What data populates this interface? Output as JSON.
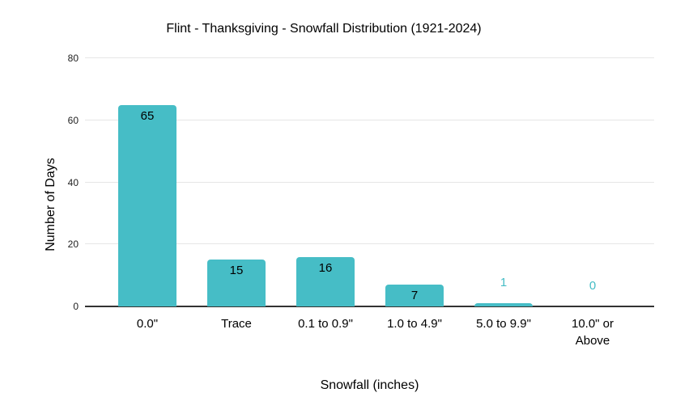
{
  "chart_data": {
    "type": "bar",
    "title": "Flint - Thanksgiving - Snowfall Distribution (1921-2024)",
    "xlabel": "Snowfall (inches)",
    "ylabel": "Number of Days",
    "categories": [
      "0.0\"",
      "Trace",
      "0.1 to 0.9\"",
      "1.0 to 4.9\"",
      "5.0 to 9.9\"",
      "10.0\" or Above"
    ],
    "values": [
      65,
      15,
      16,
      7,
      1,
      0
    ],
    "data_labels": [
      "65",
      "15",
      "16",
      "7",
      "1",
      "0"
    ],
    "yticks": [
      0,
      20,
      40,
      60,
      80
    ],
    "ylim": [
      0,
      80
    ],
    "grid": true,
    "legend": "none",
    "colors": {
      "bar": "#46bdc6",
      "label_inside": "#000000",
      "label_outside": "#46bdc6",
      "gridline": "#e6e6e6",
      "axis_line": "#333333",
      "tick_label": "#222222",
      "background": "#ffffff"
    }
  }
}
